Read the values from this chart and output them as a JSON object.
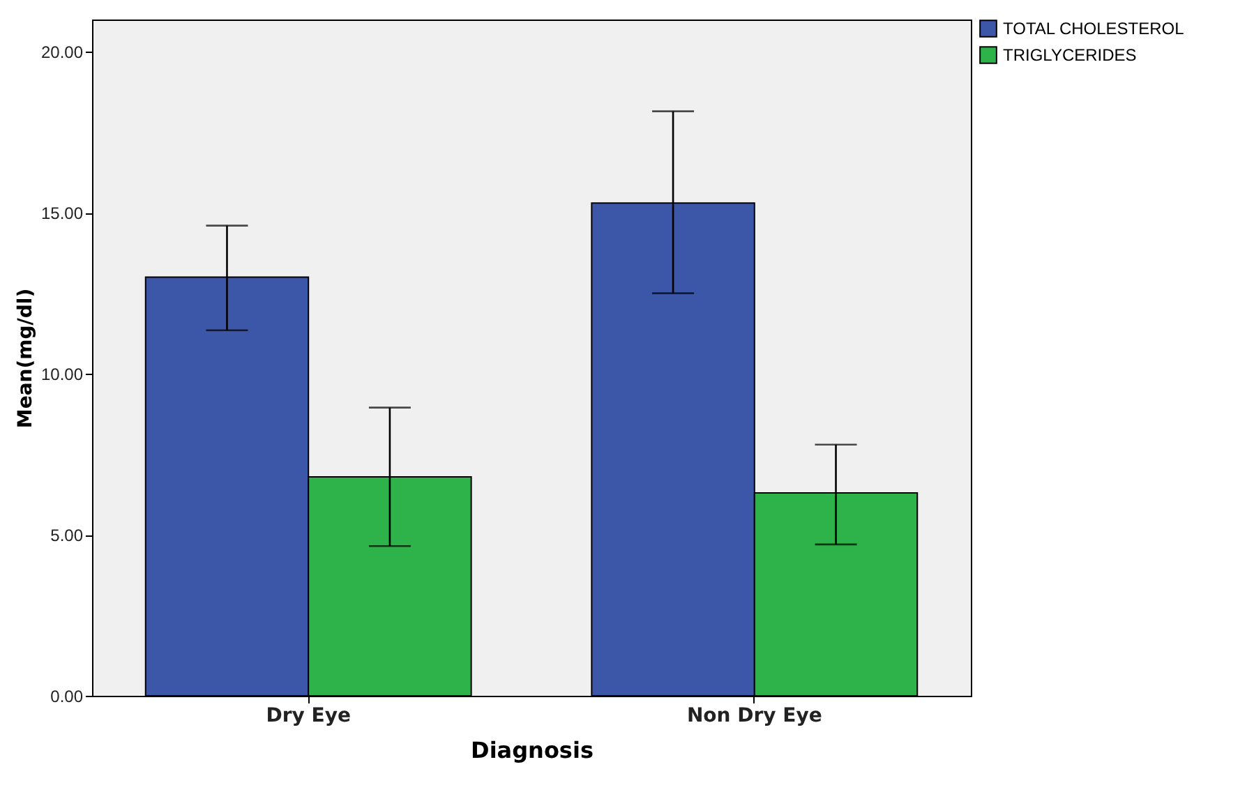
{
  "chart_data": {
    "type": "bar",
    "xlabel": "Diagnosis",
    "ylabel": "Mean(mg/dl)",
    "categories": [
      "Dry Eye",
      "Non Dry Eye"
    ],
    "series": [
      {
        "name": "TOTAL CHOLESTEROL",
        "color": "#3c56a8",
        "values": [
          13.0,
          15.3
        ],
        "errors": [
          [
            11.35,
            14.6
          ],
          [
            12.5,
            18.15
          ]
        ]
      },
      {
        "name": "TRIGLYCERIDES",
        "color": "#2db34a",
        "values": [
          6.8,
          6.3
        ],
        "errors": [
          [
            4.65,
            8.95
          ],
          [
            4.7,
            7.8
          ]
        ]
      }
    ],
    "ylim": [
      0,
      21
    ],
    "yticks": [
      {
        "value": 0,
        "label": "0.00"
      },
      {
        "value": 5,
        "label": "5.00"
      },
      {
        "value": 10,
        "label": "10.00"
      },
      {
        "value": 15,
        "label": "15.00"
      },
      {
        "value": 20,
        "label": "20.00"
      }
    ],
    "grid": false,
    "legend": "top right"
  }
}
